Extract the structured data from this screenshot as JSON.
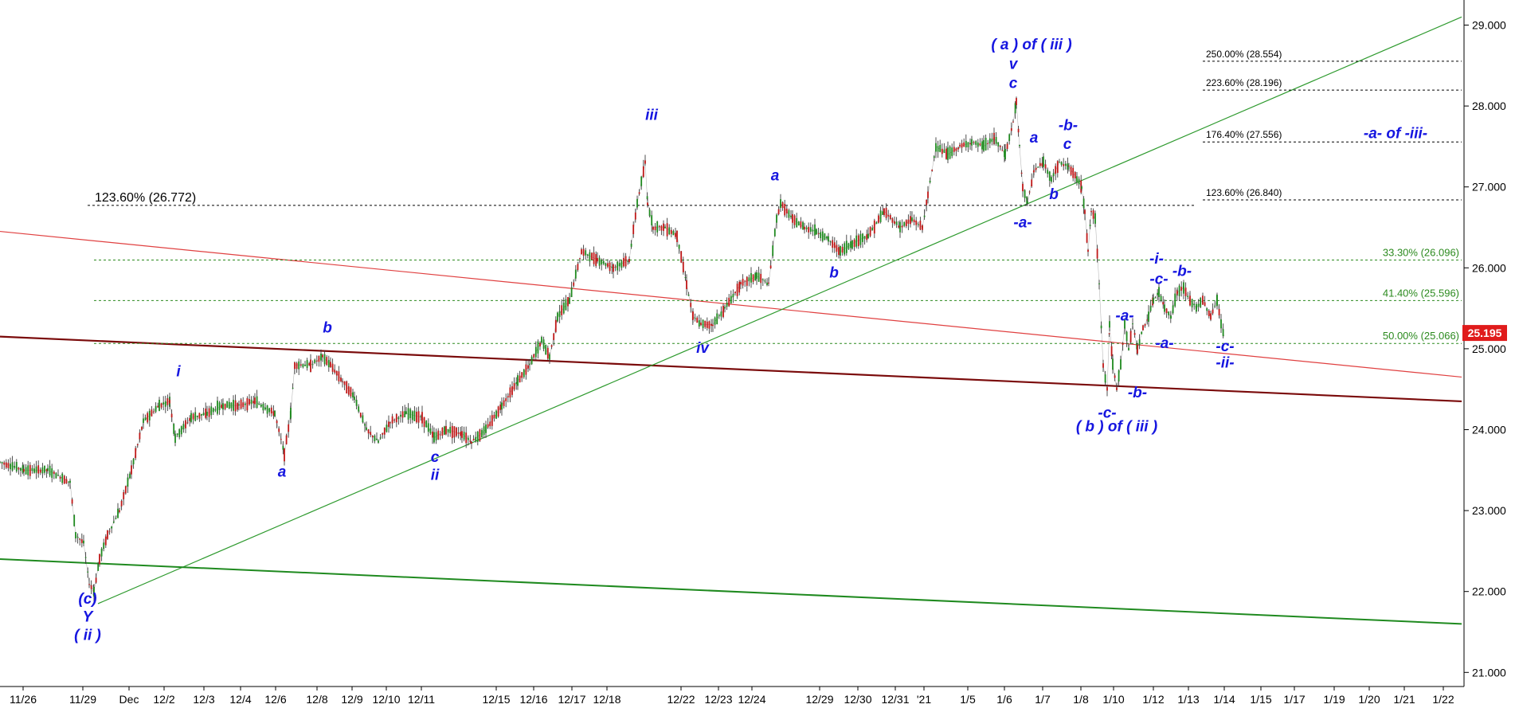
{
  "chart_data": {
    "type": "candlestick",
    "y_axis": {
      "range": [
        20.7,
        29.2
      ],
      "side": "right",
      "ticks": [
        "21.000",
        "22.000",
        "23.000",
        "24.000",
        "25.000",
        "26.000",
        "27.000",
        "28.000",
        "29.000"
      ]
    },
    "x_axis": {
      "tick_labels": [
        "11/26",
        "11/29",
        "Dec",
        "12/2",
        "12/3",
        "12/4",
        "12/6",
        "12/8",
        "12/9",
        "12/10",
        "12/11",
        "12/15",
        "12/16",
        "12/17",
        "12/18",
        "12/22",
        "12/23",
        "12/24",
        "12/29",
        "12/30",
        "12/31",
        "'21",
        "1/5",
        "1/6",
        "1/7",
        "1/8",
        "1/10",
        "1/12",
        "1/13",
        "1/14",
        "1/15",
        "1/17",
        "1/19",
        "1/20",
        "1/21",
        "1/22"
      ]
    },
    "last_price": {
      "label": "25.195",
      "value": 25.195,
      "color": "#e01b1b"
    },
    "price_path": [
      {
        "x": 0,
        "y": 23.6
      },
      {
        "x": 30,
        "y": 23.5
      },
      {
        "x": 60,
        "y": 23.5
      },
      {
        "x": 88,
        "y": 23.35
      },
      {
        "x": 95,
        "y": 22.7
      },
      {
        "x": 105,
        "y": 22.6
      },
      {
        "x": 112,
        "y": 22.1
      },
      {
        "x": 118,
        "y": 22.0
      },
      {
        "x": 125,
        "y": 22.4
      },
      {
        "x": 135,
        "y": 22.7
      },
      {
        "x": 150,
        "y": 23.0
      },
      {
        "x": 165,
        "y": 23.5
      },
      {
        "x": 180,
        "y": 24.1
      },
      {
        "x": 200,
        "y": 24.3
      },
      {
        "x": 213,
        "y": 24.35
      },
      {
        "x": 220,
        "y": 23.9
      },
      {
        "x": 240,
        "y": 24.15
      },
      {
        "x": 260,
        "y": 24.2
      },
      {
        "x": 280,
        "y": 24.3
      },
      {
        "x": 300,
        "y": 24.3
      },
      {
        "x": 320,
        "y": 24.35
      },
      {
        "x": 345,
        "y": 24.2
      },
      {
        "x": 357,
        "y": 23.7
      },
      {
        "x": 365,
        "y": 24.2
      },
      {
        "x": 370,
        "y": 24.8
      },
      {
        "x": 390,
        "y": 24.8
      },
      {
        "x": 405,
        "y": 24.9
      },
      {
        "x": 415,
        "y": 24.8
      },
      {
        "x": 430,
        "y": 24.6
      },
      {
        "x": 445,
        "y": 24.4
      },
      {
        "x": 460,
        "y": 24.0
      },
      {
        "x": 475,
        "y": 23.85
      },
      {
        "x": 490,
        "y": 24.1
      },
      {
        "x": 510,
        "y": 24.2
      },
      {
        "x": 530,
        "y": 24.15
      },
      {
        "x": 545,
        "y": 23.9
      },
      {
        "x": 560,
        "y": 24.0
      },
      {
        "x": 580,
        "y": 23.95
      },
      {
        "x": 592,
        "y": 23.85
      },
      {
        "x": 610,
        "y": 24.0
      },
      {
        "x": 630,
        "y": 24.3
      },
      {
        "x": 650,
        "y": 24.6
      },
      {
        "x": 665,
        "y": 24.8
      },
      {
        "x": 680,
        "y": 25.1
      },
      {
        "x": 690,
        "y": 24.9
      },
      {
        "x": 700,
        "y": 25.4
      },
      {
        "x": 715,
        "y": 25.6
      },
      {
        "x": 730,
        "y": 26.2
      },
      {
        "x": 750,
        "y": 26.1
      },
      {
        "x": 770,
        "y": 26.0
      },
      {
        "x": 790,
        "y": 26.1
      },
      {
        "x": 800,
        "y": 26.8
      },
      {
        "x": 810,
        "y": 27.3
      },
      {
        "x": 813,
        "y": 26.8
      },
      {
        "x": 820,
        "y": 26.5
      },
      {
        "x": 835,
        "y": 26.5
      },
      {
        "x": 850,
        "y": 26.4
      },
      {
        "x": 862,
        "y": 25.8
      },
      {
        "x": 870,
        "y": 25.4
      },
      {
        "x": 880,
        "y": 25.3
      },
      {
        "x": 895,
        "y": 25.3
      },
      {
        "x": 910,
        "y": 25.5
      },
      {
        "x": 930,
        "y": 25.8
      },
      {
        "x": 950,
        "y": 25.9
      },
      {
        "x": 965,
        "y": 25.8
      },
      {
        "x": 975,
        "y": 26.6
      },
      {
        "x": 980,
        "y": 26.8
      },
      {
        "x": 995,
        "y": 26.6
      },
      {
        "x": 1010,
        "y": 26.5
      },
      {
        "x": 1025,
        "y": 26.45
      },
      {
        "x": 1040,
        "y": 26.35
      },
      {
        "x": 1055,
        "y": 26.2
      },
      {
        "x": 1070,
        "y": 26.3
      },
      {
        "x": 1090,
        "y": 26.4
      },
      {
        "x": 1110,
        "y": 26.7
      },
      {
        "x": 1130,
        "y": 26.5
      },
      {
        "x": 1145,
        "y": 26.6
      },
      {
        "x": 1158,
        "y": 26.5
      },
      {
        "x": 1165,
        "y": 26.9
      },
      {
        "x": 1175,
        "y": 27.5
      },
      {
        "x": 1190,
        "y": 27.4
      },
      {
        "x": 1205,
        "y": 27.5
      },
      {
        "x": 1220,
        "y": 27.55
      },
      {
        "x": 1235,
        "y": 27.5
      },
      {
        "x": 1248,
        "y": 27.6
      },
      {
        "x": 1262,
        "y": 27.4
      },
      {
        "x": 1272,
        "y": 27.8
      },
      {
        "x": 1276,
        "y": 28.05
      },
      {
        "x": 1280,
        "y": 27.5
      },
      {
        "x": 1284,
        "y": 27.0
      },
      {
        "x": 1290,
        "y": 26.8
      },
      {
        "x": 1298,
        "y": 27.2
      },
      {
        "x": 1310,
        "y": 27.3
      },
      {
        "x": 1320,
        "y": 27.1
      },
      {
        "x": 1330,
        "y": 27.3
      },
      {
        "x": 1342,
        "y": 27.25
      },
      {
        "x": 1352,
        "y": 27.1
      },
      {
        "x": 1358,
        "y": 27.0
      },
      {
        "x": 1362,
        "y": 26.7
      },
      {
        "x": 1366,
        "y": 26.2
      },
      {
        "x": 1370,
        "y": 26.7
      },
      {
        "x": 1375,
        "y": 26.6
      },
      {
        "x": 1380,
        "y": 25.8
      },
      {
        "x": 1385,
        "y": 24.8
      },
      {
        "x": 1390,
        "y": 24.5
      },
      {
        "x": 1393,
        "y": 25.3
      },
      {
        "x": 1397,
        "y": 24.8
      },
      {
        "x": 1402,
        "y": 24.5
      },
      {
        "x": 1407,
        "y": 24.8
      },
      {
        "x": 1412,
        "y": 25.3
      },
      {
        "x": 1417,
        "y": 25.0
      },
      {
        "x": 1422,
        "y": 25.3
      },
      {
        "x": 1428,
        "y": 25.0
      },
      {
        "x": 1435,
        "y": 25.25
      },
      {
        "x": 1442,
        "y": 25.4
      },
      {
        "x": 1448,
        "y": 25.6
      },
      {
        "x": 1455,
        "y": 25.7
      },
      {
        "x": 1462,
        "y": 25.5
      },
      {
        "x": 1470,
        "y": 25.4
      },
      {
        "x": 1478,
        "y": 25.7
      },
      {
        "x": 1486,
        "y": 25.75
      },
      {
        "x": 1494,
        "y": 25.6
      },
      {
        "x": 1502,
        "y": 25.5
      },
      {
        "x": 1510,
        "y": 25.6
      },
      {
        "x": 1520,
        "y": 25.4
      },
      {
        "x": 1528,
        "y": 25.6
      },
      {
        "x": 1533,
        "y": 25.3
      },
      {
        "x": 1537,
        "y": 25.15
      }
    ],
    "trendlines": [
      {
        "color": "#e04040",
        "width": 1.2,
        "x1": 0,
        "y1": 26.45,
        "x2": 1835,
        "y2": 24.65
      },
      {
        "color": "#7a0a0a",
        "width": 2.2,
        "x1": 0,
        "y1": 25.15,
        "x2": 1835,
        "y2": 24.35
      },
      {
        "color": "#2e9a2e",
        "width": 1.2,
        "x1": 123,
        "y1": 21.85,
        "x2": 1835,
        "y2": 29.1
      },
      {
        "color": "#1f8a1f",
        "width": 2.0,
        "x1": 0,
        "y1": 22.4,
        "x2": 1835,
        "y2": 21.6
      }
    ],
    "fib_levels": [
      {
        "label": "123.60% (26.772)",
        "value": 26.772,
        "x1": 110,
        "x2": 1500,
        "color": "#000000",
        "label_style": "big"
      },
      {
        "label": "250.00% (28.554)",
        "value": 28.554,
        "x1": 1510,
        "x2": 1835,
        "color": "#000000",
        "label_style": "black"
      },
      {
        "label": "223.60% (28.196)",
        "value": 28.196,
        "x1": 1510,
        "x2": 1835,
        "color": "#000000",
        "label_style": "black"
      },
      {
        "label": "176.40% (27.556)",
        "value": 27.556,
        "x1": 1510,
        "x2": 1835,
        "color": "#000000",
        "label_style": "black"
      },
      {
        "label": "123.60% (26.840)",
        "value": 26.84,
        "x1": 1510,
        "x2": 1835,
        "color": "#000000",
        "label_style": "black"
      },
      {
        "label": "33.30% (26.096)",
        "value": 26.096,
        "x1": 118,
        "x2": 1835,
        "color": "#2b8a1e",
        "label_style": "green"
      },
      {
        "label": "41.40% (25.596)",
        "value": 25.596,
        "x1": 118,
        "x2": 1835,
        "color": "#2b8a1e",
        "label_style": "green"
      },
      {
        "label": "50.00% (25.066)",
        "value": 25.066,
        "x1": 118,
        "x2": 1835,
        "color": "#2b8a1e",
        "label_style": "green"
      }
    ],
    "annotations": [
      {
        "text": "(c)",
        "x": 110,
        "y": 21.85
      },
      {
        "text": "Y",
        "x": 110,
        "y": 21.63
      },
      {
        "text": "( ii )",
        "x": 110,
        "y": 21.4
      },
      {
        "text": "i",
        "x": 224,
        "y": 24.66
      },
      {
        "text": "a",
        "x": 354,
        "y": 23.42
      },
      {
        "text": "b",
        "x": 411,
        "y": 25.2
      },
      {
        "text": "c",
        "x": 546,
        "y": 23.6
      },
      {
        "text": "ii",
        "x": 546,
        "y": 23.38
      },
      {
        "text": "iii",
        "x": 818,
        "y": 27.83
      },
      {
        "text": "iv",
        "x": 882,
        "y": 24.95
      },
      {
        "text": "a",
        "x": 973,
        "y": 27.08
      },
      {
        "text": "b",
        "x": 1047,
        "y": 25.88
      },
      {
        "text": "( a )  of ( iii )",
        "x": 1295,
        "y": 28.7
      },
      {
        "text": "v",
        "x": 1272,
        "y": 28.46
      },
      {
        "text": "c",
        "x": 1272,
        "y": 28.22
      },
      {
        "text": "a",
        "x": 1298,
        "y": 27.55
      },
      {
        "text": "-b-",
        "x": 1341,
        "y": 27.7
      },
      {
        "text": "c",
        "x": 1340,
        "y": 27.47
      },
      {
        "text": "b",
        "x": 1323,
        "y": 26.85
      },
      {
        "text": "-a-",
        "x": 1284,
        "y": 26.5
      },
      {
        "text": "-a-",
        "x": 1412,
        "y": 25.35
      },
      {
        "text": "-i-",
        "x": 1452,
        "y": 26.05
      },
      {
        "text": "-c-",
        "x": 1455,
        "y": 25.8
      },
      {
        "text": "-b-",
        "x": 1484,
        "y": 25.9
      },
      {
        "text": "-a-",
        "x": 1462,
        "y": 25.01
      },
      {
        "text": "-c-",
        "x": 1538,
        "y": 24.97
      },
      {
        "text": "-ii-",
        "x": 1538,
        "y": 24.77
      },
      {
        "text": "-b-",
        "x": 1428,
        "y": 24.4
      },
      {
        "text": "-c-",
        "x": 1390,
        "y": 24.15
      },
      {
        "text": "( b )  of ( iii )",
        "x": 1402,
        "y": 23.98
      },
      {
        "text": "-a-  of -iii-",
        "x": 1752,
        "y": 27.6
      }
    ]
  }
}
